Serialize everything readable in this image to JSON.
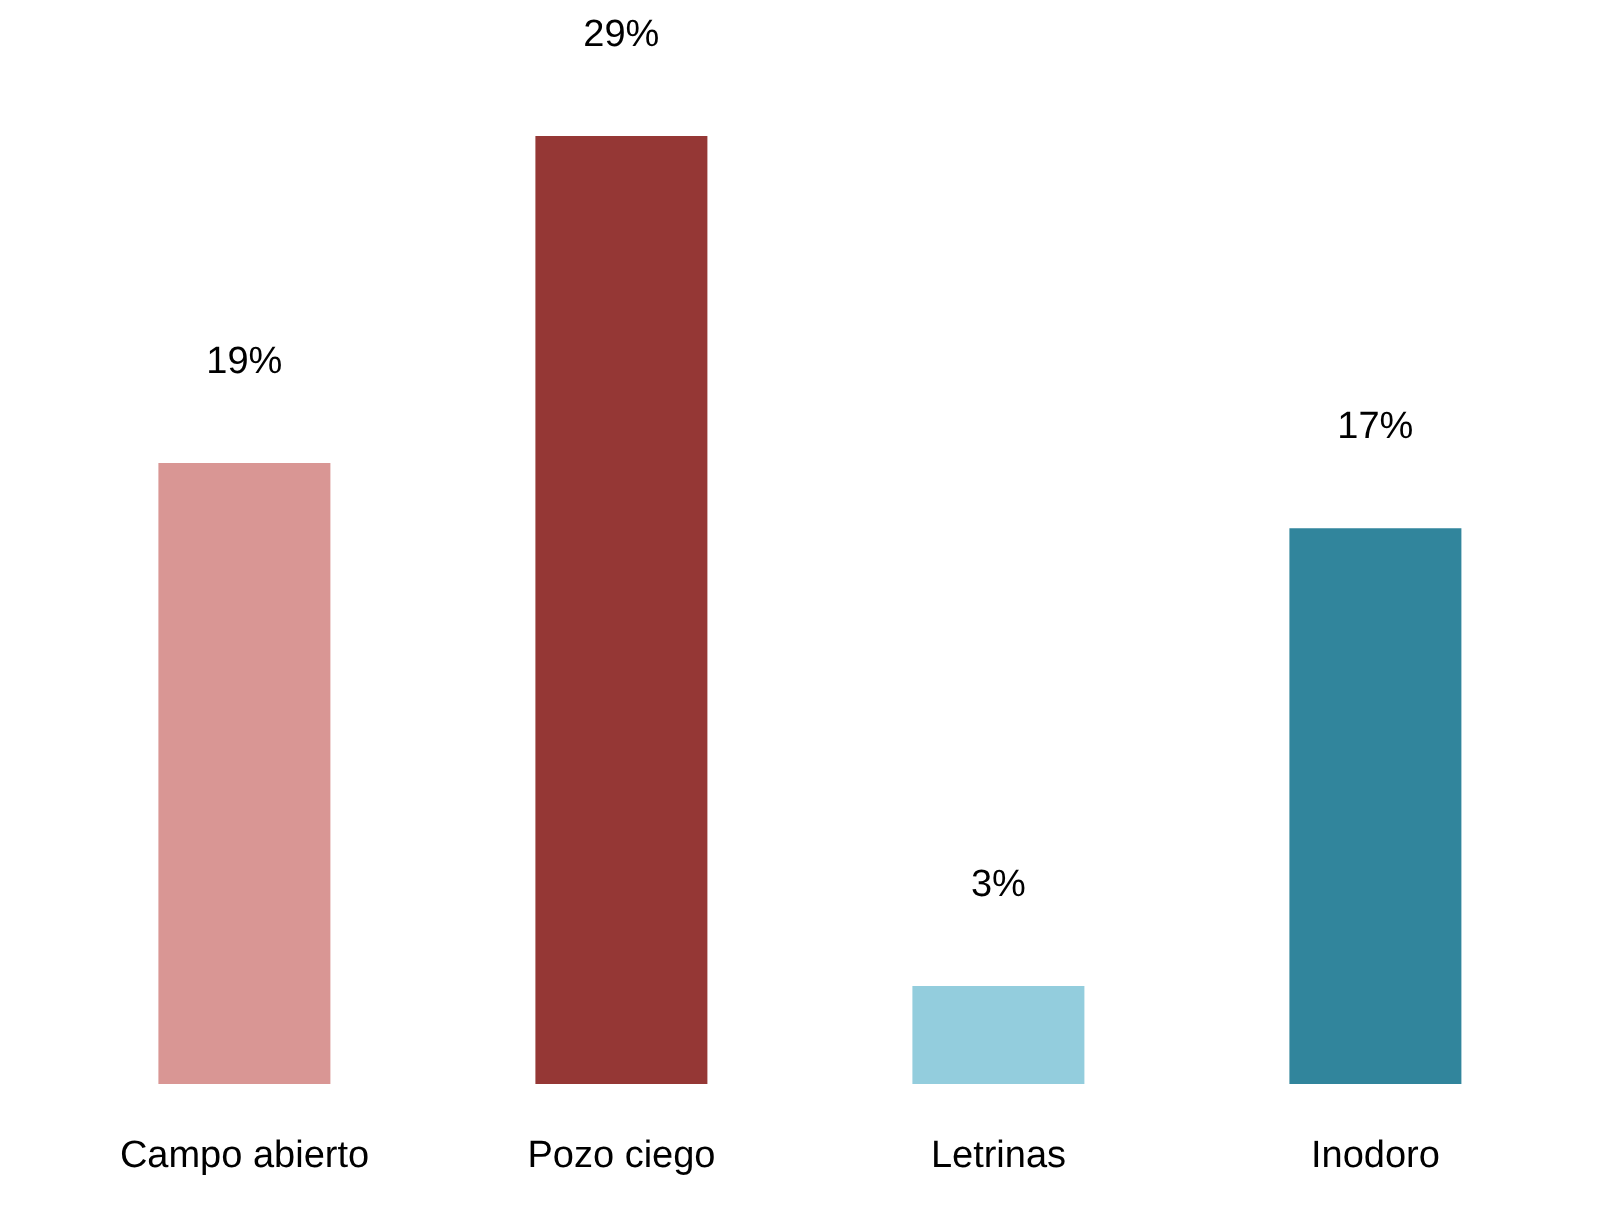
{
  "chart_data": {
    "type": "bar",
    "categories": [
      "Campo abierto",
      "Pozo ciego",
      "Letrinas",
      "Inodoro"
    ],
    "values": [
      19,
      29,
      3,
      17
    ],
    "value_labels": [
      "19%",
      "29%",
      "3%",
      "17%"
    ],
    "colors": [
      "#d99694",
      "#953735",
      "#93cddd",
      "#31859c"
    ],
    "grid": false,
    "legend": false
  }
}
